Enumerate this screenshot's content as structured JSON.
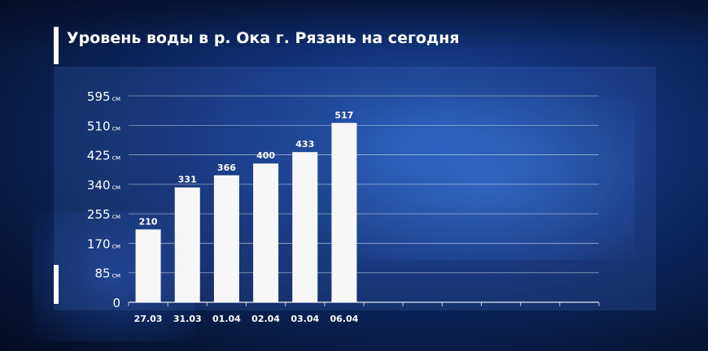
{
  "chart_data": {
    "type": "bar",
    "title": "Уровень воды в р. Ока г. Рязань на сегодня",
    "categories": [
      "27.03",
      "31.03",
      "01.04",
      "02.04",
      "03.04",
      "06.04"
    ],
    "values": [
      210,
      331,
      366,
      400,
      433,
      517
    ],
    "data_labels": [
      "210",
      "331",
      "366",
      "400",
      "433",
      "517"
    ],
    "slots": 12,
    "y_ticks": [
      {
        "value": 0,
        "label": "0",
        "unit": ""
      },
      {
        "value": 85,
        "label": "85",
        "unit": "см"
      },
      {
        "value": 170,
        "label": "170",
        "unit": "см"
      },
      {
        "value": 255,
        "label": "255",
        "unit": "см"
      },
      {
        "value": 340,
        "label": "340",
        "unit": "см"
      },
      {
        "value": 425,
        "label": "425",
        "unit": "см"
      },
      {
        "value": 510,
        "label": "510",
        "unit": "см"
      },
      {
        "value": 595,
        "label": "595",
        "unit": "см"
      }
    ],
    "ylim": [
      0,
      595
    ],
    "grid": true,
    "colors": {
      "bar": "#f7f7f7",
      "grid": "#ffffff",
      "text": "#ffffff"
    }
  }
}
